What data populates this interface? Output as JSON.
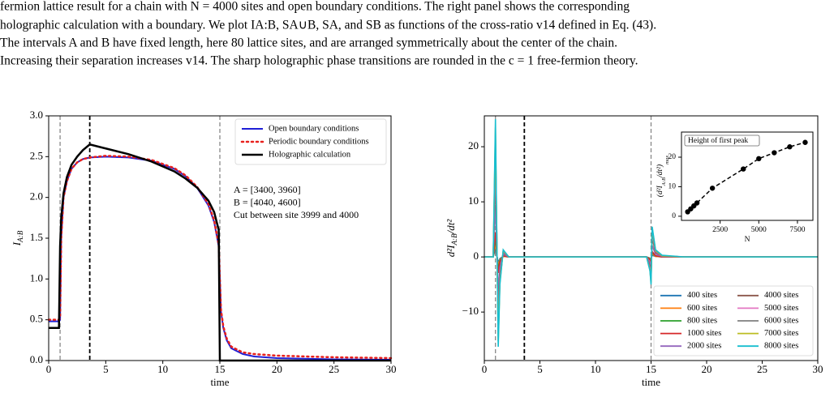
{
  "caption": [
    "fermion lattice result for a chain with N = 4000 sites and open boundary conditions. The right panel shows the corresponding",
    "holographic calculation with a boundary. We plot IA:B, SA∪B, SA, and SB as functions of the cross-ratio v14 defined in Eq. (43).",
    "The intervals A and B have fixed length, here 80 lattice sites, and are arranged symmetrically about the center of the chain.",
    "Increasing their separation increases v14. The sharp holographic phase transitions are rounded in the c = 1 free-fermion theory."
  ],
  "chart_data": [
    {
      "type": "line",
      "xlabel": "time",
      "ylabel": {
        "base": "I",
        "sub": "A:B"
      },
      "xlim": [
        0,
        30
      ],
      "ylim": [
        0,
        3
      ],
      "xticks": [
        0,
        5,
        10,
        15,
        20,
        25,
        30
      ],
      "yticks": [
        {
          "value": 0,
          "label": "0.0"
        },
        {
          "value": 0.5,
          "label": "0.5"
        },
        {
          "value": 1,
          "label": "1.0"
        },
        {
          "value": 1.5,
          "label": "1.5"
        },
        {
          "value": 2,
          "label": "2.0"
        },
        {
          "value": 2.5,
          "label": "2.5"
        },
        {
          "value": 3,
          "label": "3.0"
        }
      ],
      "vlines": [
        {
          "x": 1,
          "color": "#888888"
        },
        {
          "x": 3.6,
          "color": "#000000"
        },
        {
          "x": 15,
          "color": "#888888"
        }
      ],
      "legend": "upper right",
      "annotation": [
        "A = [3400, 3960]",
        "B = [4040, 4600]",
        "Cut between site 3999 and 4000"
      ],
      "x": [
        0,
        0.5,
        0.9,
        1,
        1.1,
        1.3,
        1.6,
        2,
        2.5,
        3,
        3.6,
        5,
        7,
        9,
        11,
        12,
        13,
        14,
        14.5,
        14.9,
        15,
        15.1,
        15.3,
        15.6,
        16,
        17,
        18,
        20,
        25,
        30
      ],
      "series": [
        {
          "name": "Open boundary conditions",
          "color": "#1f1fd6",
          "dash": "solid",
          "width": 2,
          "values": [
            0.48,
            0.48,
            0.48,
            0.5,
            1.5,
            2.0,
            2.2,
            2.35,
            2.43,
            2.47,
            2.49,
            2.5,
            2.49,
            2.45,
            2.35,
            2.26,
            2.12,
            1.9,
            1.7,
            1.4,
            1.0,
            0.6,
            0.4,
            0.25,
            0.15,
            0.08,
            0.05,
            0.03,
            0.015,
            0.01
          ]
        },
        {
          "name": "Periodic boundary conditions",
          "color": "#e8201c",
          "dash": "dotted",
          "width": 2.5,
          "values": [
            0.5,
            0.5,
            0.5,
            0.52,
            1.5,
            2.0,
            2.2,
            2.35,
            2.43,
            2.47,
            2.49,
            2.51,
            2.5,
            2.46,
            2.36,
            2.27,
            2.13,
            1.92,
            1.72,
            1.42,
            1.0,
            0.62,
            0.42,
            0.27,
            0.17,
            0.1,
            0.08,
            0.06,
            0.04,
            0.03
          ]
        },
        {
          "name": "Holographic calculation",
          "color": "#000000",
          "dash": "solid",
          "width": 2.5,
          "values": [
            0.4,
            0.4,
            0.4,
            1.4,
            1.75,
            2.05,
            2.25,
            2.4,
            2.5,
            2.58,
            2.65,
            2.6,
            2.53,
            2.44,
            2.32,
            2.23,
            2.12,
            1.96,
            1.82,
            1.6,
            0,
            0,
            0,
            0,
            0,
            0,
            0,
            0,
            0,
            0
          ]
        }
      ]
    },
    {
      "type": "line",
      "xlabel": "time",
      "ylabel": {
        "pre": "d²I",
        "sub": "A:B",
        "post": "/dt²"
      },
      "xlim": [
        0,
        30
      ],
      "ylim": [
        -18.8,
        25.6
      ],
      "xticks": [
        0,
        5,
        10,
        15,
        20,
        25,
        30
      ],
      "yticks": [
        {
          "value": -10,
          "label": "−10"
        },
        0,
        10,
        20
      ],
      "vlines": [
        {
          "x": 1,
          "color": "#888888"
        },
        {
          "x": 3.6,
          "color": "#000000"
        },
        {
          "x": 15,
          "color": "#888888"
        }
      ],
      "legend": "lower right",
      "legend_columns": 2,
      "x": [
        0,
        0.8,
        1,
        1.1,
        1.25,
        1.4,
        1.7,
        2.2,
        3,
        5,
        14.6,
        14.9,
        15,
        15.1,
        15.4,
        16,
        18,
        30
      ],
      "series": [
        {
          "name": "400 sites",
          "color": "#1f77b4",
          "values": [
            0,
            0,
            1.5,
            0.5,
            -1,
            -0.3,
            0.1,
            0,
            0,
            0,
            0,
            -0.2,
            -0.3,
            0.3,
            0.1,
            0,
            0,
            0
          ]
        },
        {
          "name": "600 sites",
          "color": "#ff7f0e",
          "values": [
            0,
            0,
            2.5,
            0.8,
            -1.6,
            -0.5,
            0.1,
            0,
            0,
            0,
            0,
            -0.3,
            -0.5,
            0.6,
            0.1,
            0,
            0,
            0
          ]
        },
        {
          "name": "800 sites",
          "color": "#2ca02c",
          "values": [
            0,
            0,
            3.5,
            1.1,
            -2.3,
            -0.7,
            0.2,
            0,
            0,
            0,
            0,
            -0.4,
            -0.7,
            0.8,
            0.2,
            0,
            0,
            0
          ]
        },
        {
          "name": "1000 sites",
          "color": "#d62728",
          "values": [
            0,
            0,
            4.5,
            1.4,
            -2.9,
            -0.9,
            0.2,
            0,
            0,
            0,
            0,
            -0.5,
            -0.9,
            1,
            0.2,
            0,
            0,
            0
          ]
        },
        {
          "name": "2000 sites",
          "color": "#9467bd",
          "values": [
            0,
            0,
            9.5,
            2.9,
            -6.2,
            -1.9,
            0.5,
            0,
            0,
            0,
            0,
            -1,
            -1.9,
            2.1,
            0.5,
            0.1,
            0,
            0
          ]
        },
        {
          "name": "4000 sites",
          "color": "#8c564b",
          "values": [
            0,
            0,
            16,
            4.8,
            -10.4,
            -3.2,
            0.8,
            0,
            0,
            0,
            0,
            -1.6,
            -3.2,
            3.5,
            0.8,
            0.2,
            0,
            0
          ]
        },
        {
          "name": "5000 sites",
          "color": "#e377c2",
          "values": [
            0,
            0,
            19.5,
            5.9,
            -12.7,
            -3.9,
            1,
            0,
            0,
            0,
            0,
            -2,
            -3.9,
            4.3,
            1,
            0.2,
            0,
            0
          ]
        },
        {
          "name": "6000 sites",
          "color": "#7f7f7f",
          "values": [
            0,
            0,
            21.5,
            6.5,
            -14,
            -4.3,
            1.1,
            0,
            0,
            0,
            0,
            -2.2,
            -4.3,
            4.7,
            1.1,
            0.2,
            0,
            0
          ]
        },
        {
          "name": "7000 sites",
          "color": "#bcbd22",
          "values": [
            0,
            0,
            23.5,
            7,
            -15.3,
            -4.7,
            1.2,
            0,
            0,
            0,
            0,
            -2.4,
            -4.7,
            5.2,
            1.2,
            0.2,
            0,
            0
          ]
        },
        {
          "name": "8000 sites",
          "color": "#17becf",
          "values": [
            0,
            0,
            25,
            7.5,
            -16.3,
            -5,
            1.3,
            0,
            0,
            0,
            0,
            -2.5,
            -5,
            5.5,
            1.3,
            0.3,
            0,
            0
          ]
        }
      ]
    },
    {
      "type": "line",
      "title": "Height of first peak",
      "xlabel": "N",
      "ylabel": {
        "pre": "(d²I",
        "sub": "A:B",
        "post": "/dt²)",
        "sub2": "max"
      },
      "xlim": [
        0,
        8500
      ],
      "ylim": [
        -1.4,
        28.5
      ],
      "xticks": [
        2500,
        5000,
        7500
      ],
      "yticks": [
        0,
        10,
        20
      ],
      "markers": true,
      "x": [
        400,
        600,
        800,
        1000,
        2000,
        4000,
        5000,
        6000,
        7000,
        8000
      ],
      "series": [
        {
          "color": "#000000",
          "dash": "dashed",
          "width": 1.5,
          "values": [
            1.5,
            2.5,
            3.5,
            4.5,
            9.5,
            16,
            19.5,
            21.5,
            23.5,
            25
          ]
        }
      ]
    }
  ]
}
